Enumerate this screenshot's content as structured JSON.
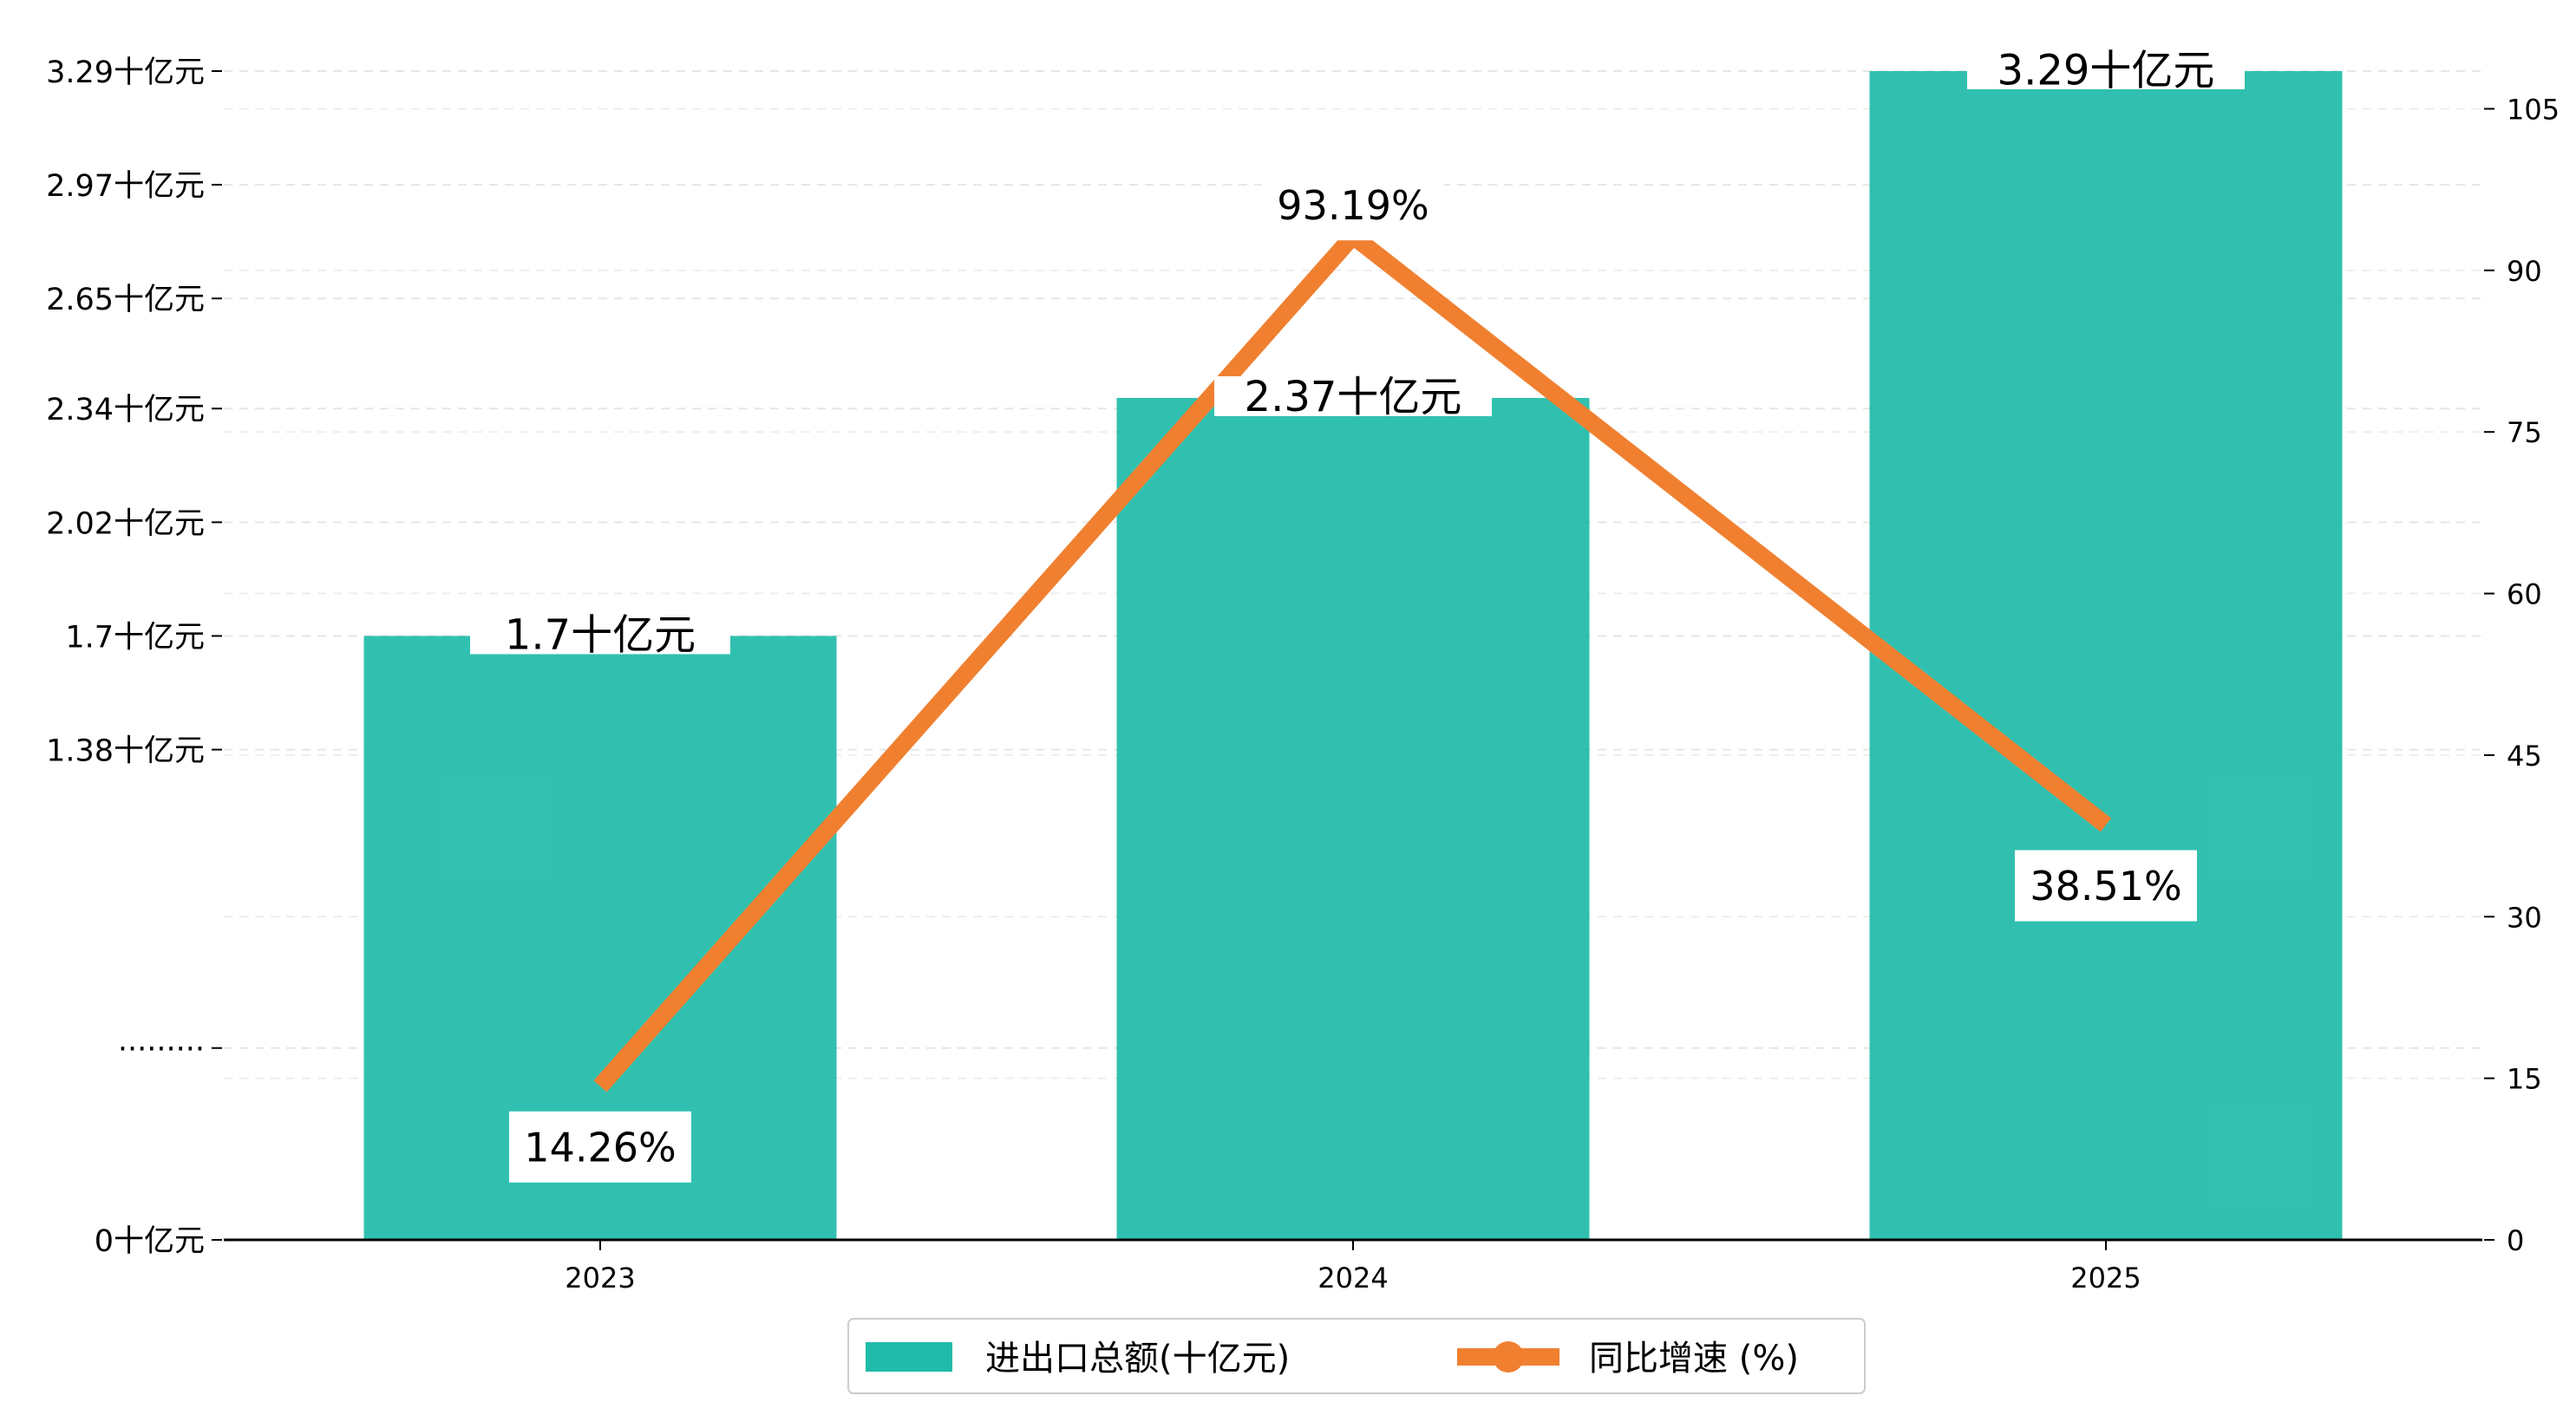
{
  "chart_data": {
    "type": "bar",
    "categories": [
      "2023",
      "2024",
      "2025"
    ],
    "series": [
      {
        "name": "进出口总额(十亿元)",
        "type": "bar",
        "axis": "left",
        "values": [
          1.7,
          2.37,
          3.29
        ],
        "labels": [
          "1.7十亿元",
          "2.37十亿元",
          "3.29十亿元"
        ],
        "color": "#20bba9"
      },
      {
        "name": "同比增速 (%)",
        "type": "line",
        "axis": "right",
        "values": [
          14.26,
          93.19,
          38.51
        ],
        "labels": [
          "14.26%",
          "93.19%",
          "38.51%"
        ],
        "color": "#f08030"
      }
    ],
    "y_left": {
      "ticks": [
        0,
        0.54,
        1.38,
        1.7,
        2.02,
        2.34,
        2.65,
        2.97,
        3.29
      ],
      "tick_labels": [
        "0十亿元",
        "·········",
        "1.38十亿元",
        "1.7十亿元",
        "2.02十亿元",
        "2.34十亿元",
        "2.65十亿元",
        "2.97十亿元",
        "3.29十亿元"
      ],
      "ylim": [
        0,
        3.29
      ]
    },
    "y_right": {
      "ticks": [
        0,
        15,
        30,
        45,
        60,
        75,
        90,
        105
      ],
      "tick_labels": [
        "0",
        "15",
        "30",
        "45",
        "60",
        "75",
        "90",
        "105"
      ],
      "ylim": [
        0,
        108.5
      ]
    },
    "grid": "horizontal-dashed",
    "legend": "bottom-center"
  }
}
